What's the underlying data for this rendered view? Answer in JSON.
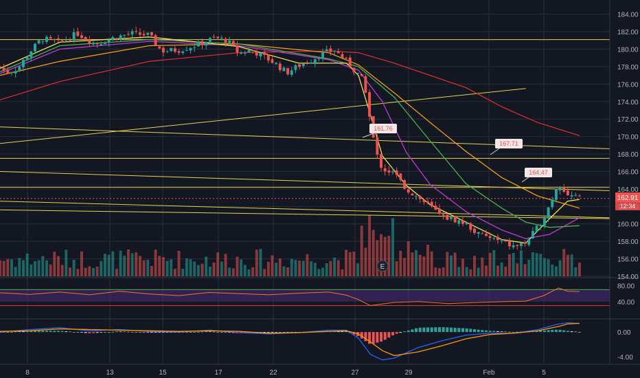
{
  "colors": {
    "background": "#131722",
    "grid": "#2a2e39",
    "up": "#26a69a",
    "down": "#ef5350",
    "hline": "#e5d54d",
    "ema_fast": "#f4e04d",
    "ema_green": "#4caf50",
    "ema_magenta": "#c038d8",
    "ema_orange": "#f39c12",
    "ema_red": "#d32f2f",
    "rsi": "#f5781e",
    "rsi_band": "#4b2c7a",
    "macd": "#2962ff",
    "signal": "#ff9800",
    "axis_text": "#b2b5be",
    "price_tag": "#ef5350",
    "callout_fill": "#f2e6e6",
    "callout_text": "#ef5350"
  },
  "chart_data": {
    "type": "candlestick",
    "x_tick_labels": [
      "8",
      "13",
      "15",
      "17",
      "22",
      "27",
      "29",
      "Feb",
      "5"
    ],
    "y_price": {
      "ticks": [
        184.0,
        182.0,
        180.0,
        178.0,
        176.0,
        174.0,
        172.0,
        170.0,
        168.0,
        166.0,
        164.0,
        162.0,
        160.0,
        158.0,
        156.0,
        154.0
      ],
      "range": [
        154.0,
        185.0
      ]
    },
    "current_price": "162.91",
    "countdown": "12:34",
    "callouts": [
      "161.76",
      "167.71",
      "164.47"
    ],
    "earnings_marker": "E",
    "horizontal_lines": [
      181.1,
      167.5,
      164.2
    ],
    "trend_lines": [
      {
        "from": [
          0,
          171.1
        ],
        "to": [
          1,
          168.6
        ]
      },
      {
        "from": [
          0,
          169.2
        ],
        "to": [
          0.88,
          175.5
        ]
      },
      {
        "from": [
          0,
          166.0
        ],
        "to": [
          1,
          163.8
        ]
      },
      {
        "from": [
          0,
          162.6
        ],
        "to": [
          1,
          160.7
        ]
      },
      {
        "from": [
          0,
          161.6
        ],
        "to": [
          1,
          160.6
        ]
      }
    ],
    "close_path": [
      [
        0.0,
        178.0
      ],
      [
        0.01,
        177.3
      ],
      [
        0.03,
        177.8
      ],
      [
        0.05,
        179.7
      ],
      [
        0.07,
        181.2
      ],
      [
        0.1,
        180.8
      ],
      [
        0.13,
        181.8
      ],
      [
        0.16,
        180.6
      ],
      [
        0.19,
        181.3
      ],
      [
        0.22,
        181.8
      ],
      [
        0.25,
        181.6
      ],
      [
        0.27,
        179.8
      ],
      [
        0.3,
        179.9
      ],
      [
        0.33,
        180.5
      ],
      [
        0.36,
        181.3
      ],
      [
        0.38,
        181.0
      ],
      [
        0.4,
        179.5
      ],
      [
        0.42,
        179.9
      ],
      [
        0.44,
        179.2
      ],
      [
        0.46,
        178.4
      ],
      [
        0.48,
        177.3
      ],
      [
        0.5,
        178.1
      ],
      [
        0.52,
        178.7
      ],
      [
        0.54,
        179.5
      ],
      [
        0.56,
        179.9
      ],
      [
        0.58,
        178.6
      ],
      [
        0.6,
        177.1
      ],
      [
        0.61,
        176.2
      ],
      [
        0.62,
        171.5
      ],
      [
        0.63,
        168.0
      ],
      [
        0.64,
        166.3
      ],
      [
        0.66,
        165.8
      ],
      [
        0.68,
        164.0
      ],
      [
        0.7,
        163.0
      ],
      [
        0.72,
        162.0
      ],
      [
        0.74,
        160.8
      ],
      [
        0.76,
        160.5
      ],
      [
        0.78,
        160.0
      ],
      [
        0.8,
        158.8
      ],
      [
        0.82,
        158.4
      ],
      [
        0.84,
        157.9
      ],
      [
        0.86,
        157.4
      ],
      [
        0.88,
        157.8
      ],
      [
        0.9,
        159.6
      ],
      [
        0.91,
        160.8
      ],
      [
        0.92,
        162.2
      ],
      [
        0.935,
        164.8
      ],
      [
        0.95,
        163.3
      ],
      [
        0.97,
        162.9
      ]
    ],
    "ema_fast": [
      [
        0.0,
        177.8
      ],
      [
        0.1,
        180.8
      ],
      [
        0.25,
        181.4
      ],
      [
        0.4,
        180.3
      ],
      [
        0.5,
        178.4
      ],
      [
        0.58,
        178.4
      ],
      [
        0.6,
        177.0
      ],
      [
        0.62,
        172.5
      ],
      [
        0.64,
        167.8
      ],
      [
        0.68,
        164.4
      ],
      [
        0.72,
        162.2
      ],
      [
        0.78,
        160.2
      ],
      [
        0.84,
        158.2
      ],
      [
        0.88,
        157.8
      ],
      [
        0.92,
        160.6
      ],
      [
        0.95,
        162.6
      ],
      [
        0.97,
        162.8
      ]
    ],
    "ema_green": [
      [
        0.0,
        177.4
      ],
      [
        0.1,
        180.4
      ],
      [
        0.25,
        181.1
      ],
      [
        0.4,
        180.6
      ],
      [
        0.55,
        178.9
      ],
      [
        0.6,
        178.0
      ],
      [
        0.66,
        174.5
      ],
      [
        0.72,
        169.5
      ],
      [
        0.78,
        164.6
      ],
      [
        0.84,
        161.8
      ],
      [
        0.88,
        160.2
      ],
      [
        0.92,
        159.6
      ],
      [
        0.97,
        159.8
      ]
    ],
    "ema_magenta": [
      [
        0.0,
        177.2
      ],
      [
        0.1,
        180.0
      ],
      [
        0.25,
        180.9
      ],
      [
        0.4,
        180.4
      ],
      [
        0.55,
        178.8
      ],
      [
        0.6,
        177.6
      ],
      [
        0.64,
        174.0
      ],
      [
        0.68,
        168.2
      ],
      [
        0.72,
        164.5
      ],
      [
        0.78,
        161.4
      ],
      [
        0.84,
        159.3
      ],
      [
        0.88,
        158.3
      ],
      [
        0.92,
        158.8
      ],
      [
        0.97,
        160.7
      ]
    ],
    "ema_orange": [
      [
        0.0,
        177.0
      ],
      [
        0.1,
        178.6
      ],
      [
        0.25,
        180.4
      ],
      [
        0.4,
        180.6
      ],
      [
        0.55,
        179.6
      ],
      [
        0.6,
        178.2
      ],
      [
        0.66,
        175.0
      ],
      [
        0.72,
        171.6
      ],
      [
        0.78,
        168.3
      ],
      [
        0.84,
        165.3
      ],
      [
        0.9,
        163.2
      ],
      [
        0.97,
        161.8
      ]
    ],
    "ema_red": [
      [
        0.0,
        174.2
      ],
      [
        0.1,
        176.3
      ],
      [
        0.25,
        178.6
      ],
      [
        0.4,
        179.6
      ],
      [
        0.55,
        179.8
      ],
      [
        0.6,
        179.6
      ],
      [
        0.66,
        178.4
      ],
      [
        0.72,
        177.0
      ],
      [
        0.78,
        175.6
      ],
      [
        0.84,
        173.4
      ],
      [
        0.9,
        171.6
      ],
      [
        0.97,
        170.1
      ]
    ],
    "rsi_ticks": [
      "80.00",
      "40.00"
    ],
    "rsi_range": [
      0,
      100
    ],
    "rsi_band": [
      40,
      70
    ],
    "rsi_path": [
      [
        0.0,
        62
      ],
      [
        0.05,
        58
      ],
      [
        0.1,
        64
      ],
      [
        0.15,
        57
      ],
      [
        0.2,
        66
      ],
      [
        0.25,
        59
      ],
      [
        0.3,
        55
      ],
      [
        0.35,
        63
      ],
      [
        0.4,
        60
      ],
      [
        0.45,
        57
      ],
      [
        0.5,
        61
      ],
      [
        0.55,
        64
      ],
      [
        0.58,
        56
      ],
      [
        0.6,
        45
      ],
      [
        0.62,
        30
      ],
      [
        0.66,
        38
      ],
      [
        0.7,
        40
      ],
      [
        0.75,
        35
      ],
      [
        0.8,
        38
      ],
      [
        0.85,
        40
      ],
      [
        0.88,
        41
      ],
      [
        0.91,
        55
      ],
      [
        0.935,
        74
      ],
      [
        0.95,
        66
      ],
      [
        0.97,
        65
      ]
    ],
    "macd_ticks": [
      "0.00",
      "-4.00"
    ],
    "macd_range": [
      -5.2,
      1.9
    ],
    "macd_path": [
      [
        0.0,
        0.0
      ],
      [
        0.05,
        0.4
      ],
      [
        0.1,
        0.7
      ],
      [
        0.15,
        0.2
      ],
      [
        0.2,
        0.4
      ],
      [
        0.25,
        0.1
      ],
      [
        0.3,
        0.0
      ],
      [
        0.35,
        0.3
      ],
      [
        0.4,
        -0.1
      ],
      [
        0.45,
        -0.3
      ],
      [
        0.5,
        -0.1
      ],
      [
        0.55,
        0.3
      ],
      [
        0.58,
        0.3
      ],
      [
        0.6,
        -1.0
      ],
      [
        0.62,
        -3.6
      ],
      [
        0.64,
        -4.5
      ],
      [
        0.66,
        -4.2
      ],
      [
        0.7,
        -2.5
      ],
      [
        0.74,
        -1.4
      ],
      [
        0.78,
        -0.5
      ],
      [
        0.82,
        -0.2
      ],
      [
        0.86,
        -0.2
      ],
      [
        0.9,
        0.4
      ],
      [
        0.935,
        1.3
      ],
      [
        0.95,
        1.5
      ],
      [
        0.97,
        1.4
      ]
    ],
    "signal_path": [
      [
        0.0,
        0.1
      ],
      [
        0.05,
        0.2
      ],
      [
        0.1,
        0.5
      ],
      [
        0.15,
        0.4
      ],
      [
        0.2,
        0.3
      ],
      [
        0.25,
        0.2
      ],
      [
        0.3,
        0.1
      ],
      [
        0.35,
        0.2
      ],
      [
        0.4,
        0.1
      ],
      [
        0.45,
        -0.2
      ],
      [
        0.5,
        -0.1
      ],
      [
        0.55,
        0.1
      ],
      [
        0.58,
        0.2
      ],
      [
        0.6,
        -0.3
      ],
      [
        0.62,
        -1.6
      ],
      [
        0.64,
        -3.0
      ],
      [
        0.66,
        -3.8
      ],
      [
        0.7,
        -3.2
      ],
      [
        0.74,
        -2.2
      ],
      [
        0.78,
        -1.1
      ],
      [
        0.82,
        -0.4
      ],
      [
        0.86,
        -0.2
      ],
      [
        0.9,
        0.2
      ],
      [
        0.935,
        0.9
      ],
      [
        0.95,
        1.3
      ],
      [
        0.97,
        1.4
      ]
    ]
  }
}
